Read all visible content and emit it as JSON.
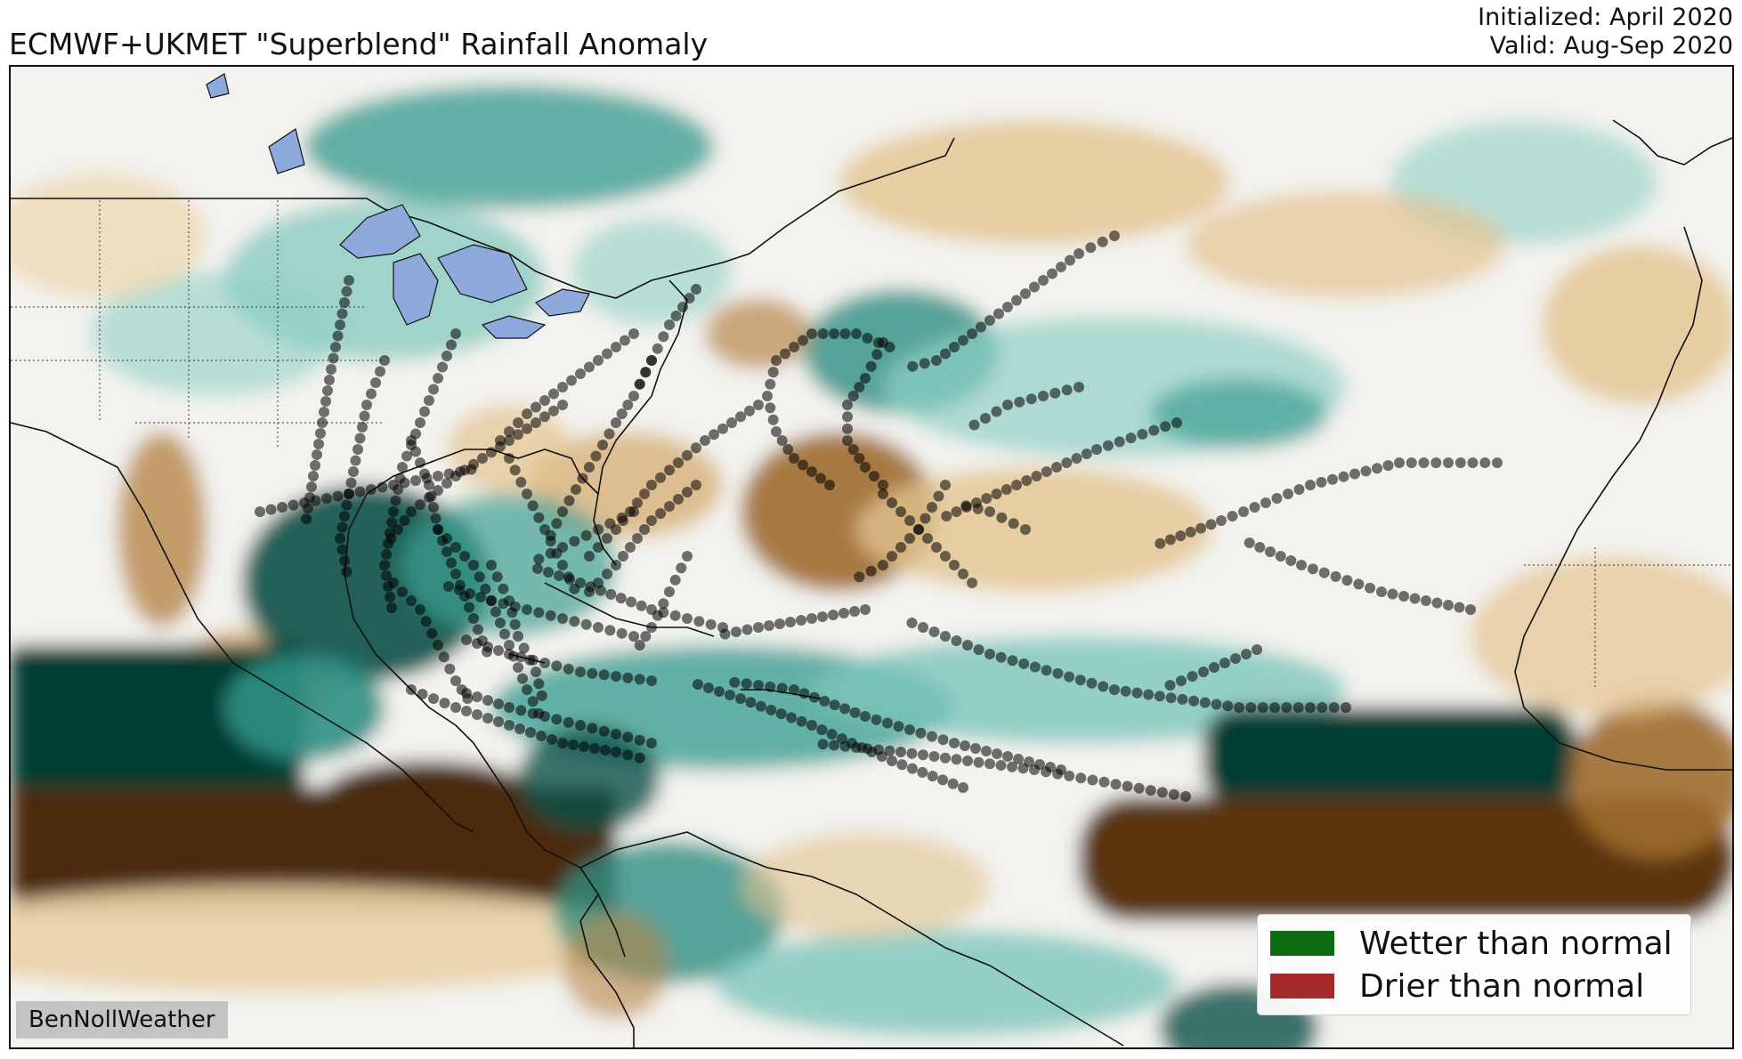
{
  "header": {
    "title": "ECMWF+UKMET \"Superblend\" Rainfall Anomaly",
    "initialized": "Initialized: April 2020",
    "valid": "Valid: Aug-Sep 2020"
  },
  "legend": {
    "items": [
      {
        "label": "Wetter than normal",
        "color": "#0b6b0f"
      },
      {
        "label": "Drier than normal",
        "color": "#a52a2a"
      }
    ]
  },
  "credit": "BenNollWeather",
  "colors": {
    "wet_dark": "#003d33",
    "wet_mid": "#2f8f83",
    "wet_light": "#8fd0c6",
    "dry_dark": "#4b2a08",
    "dry_mid": "#9e6b2f",
    "dry_light": "#e2c38f",
    "neutral": "#f3f2ee",
    "lakes": "#8ea9db",
    "storm_points": "#000000"
  }
}
